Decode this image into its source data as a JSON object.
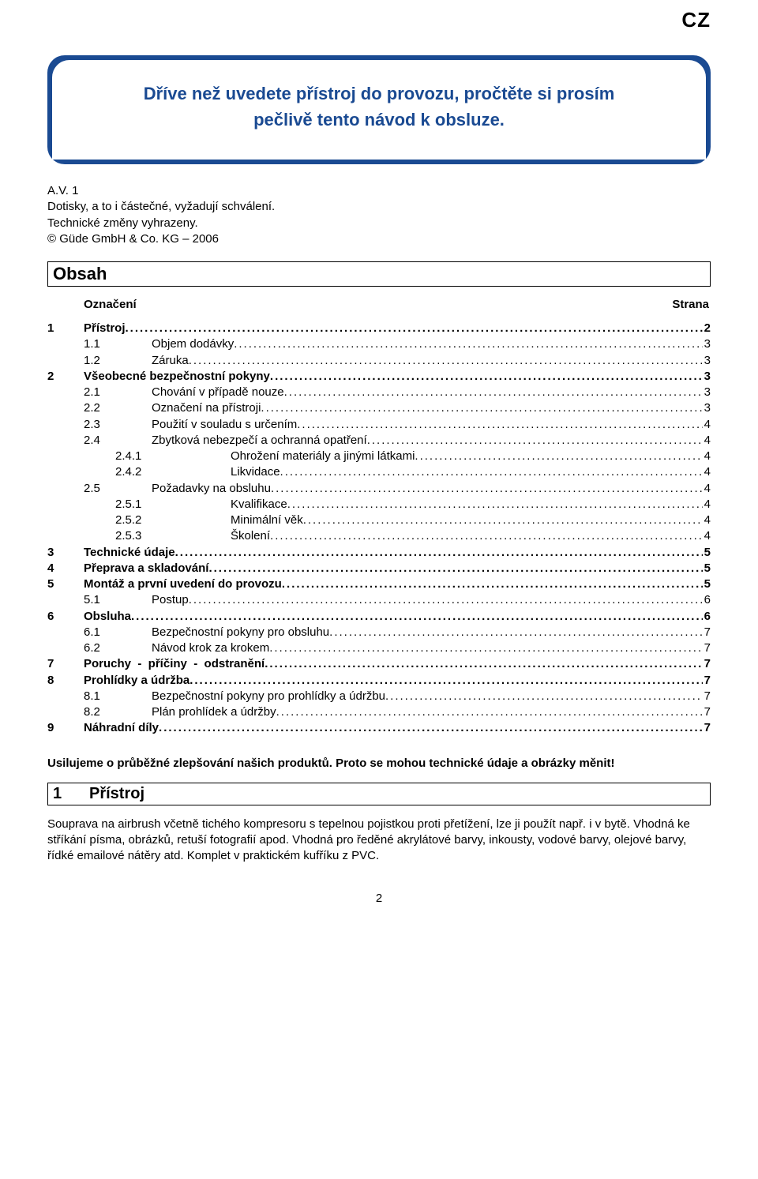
{
  "lang_badge": "CZ",
  "banner_color": "#1a4a92",
  "banner_lines": [
    "Dříve než uvedete přístroj do provozu, pročtěte si prosím",
    "pečlivě tento návod k obsluze."
  ],
  "meta_lines": [
    "A.V. 1",
    "Dotisky, a to i částečné, vyžadují schválení.",
    "Technické změny vyhrazeny.",
    "© Güde GmbH & Co. KG – 2006"
  ],
  "obsah_title": "Obsah",
  "oznaceni_label": "Označení",
  "strana_label": "Strana",
  "toc": [
    {
      "level": 0,
      "num": "1",
      "label": "Přístroj",
      "page": "2",
      "bold": true
    },
    {
      "level": 1,
      "num": "1.1",
      "label": "Objem dodávky",
      "page": "3",
      "bold": false
    },
    {
      "level": 1,
      "num": "1.2",
      "label": "Záruka",
      "page": "3",
      "bold": false
    },
    {
      "level": 0,
      "num": "2",
      "label": "Všeobecné bezpečnostní pokyny",
      "page": "3",
      "bold": true
    },
    {
      "level": 1,
      "num": "2.1",
      "label": "Chování v případě nouze",
      "page": "3",
      "bold": false
    },
    {
      "level": 1,
      "num": "2.2",
      "label": "Označení na přístroji",
      "page": "3",
      "bold": false
    },
    {
      "level": 1,
      "num": "2.3",
      "label": "Použití v souladu s určením",
      "page": "4",
      "bold": false
    },
    {
      "level": 1,
      "num": "2.4",
      "label": "Zbytková nebezpečí a ochranná opatření",
      "page": "4",
      "bold": false
    },
    {
      "level": 2,
      "num": "2.4.1",
      "label": "Ohrožení materiály a jinými látkami",
      "page": "4",
      "bold": false
    },
    {
      "level": 2,
      "num": "2.4.2",
      "label": "Likvidace",
      "page": "4",
      "bold": false
    },
    {
      "level": 1,
      "num": "2.5",
      "label": "Požadavky na obsluhu",
      "page": "4",
      "bold": false
    },
    {
      "level": 2,
      "num": "2.5.1",
      "label": "Kvalifikace",
      "page": "4",
      "bold": false
    },
    {
      "level": 2,
      "num": "2.5.2",
      "label": "Minimální věk",
      "page": "4",
      "bold": false
    },
    {
      "level": 2,
      "num": "2.5.3",
      "label": "Školení",
      "page": "4",
      "bold": false
    },
    {
      "level": 0,
      "num": "3",
      "label": "Technické údaje",
      "page": "5",
      "bold": true
    },
    {
      "level": 0,
      "num": "4",
      "label": "Přeprava a skladování",
      "page": "5",
      "bold": true
    },
    {
      "level": 0,
      "num": "5",
      "label": "Montáž a první uvedení do provozu",
      "page": "5",
      "bold": true
    },
    {
      "level": 1,
      "num": "5.1",
      "label": "Postup",
      "page": "6",
      "bold": false
    },
    {
      "level": 0,
      "num": "6",
      "label": "Obsluha",
      "page": "6",
      "bold": true
    },
    {
      "level": 1,
      "num": "6.1",
      "label": "Bezpečnostní pokyny pro obsluhu",
      "page": "7",
      "bold": false
    },
    {
      "level": 1,
      "num": "6.2",
      "label": "Návod krok za krokem",
      "page": "7",
      "bold": false
    },
    {
      "level": 0,
      "num": "7",
      "label": "Poruchy  -  příčiny  -  odstranění",
      "page": "7",
      "bold": true
    },
    {
      "level": 0,
      "num": "8",
      "label": "Prohlídky a údržba",
      "page": "7",
      "bold": true
    },
    {
      "level": 1,
      "num": "8.1",
      "label": "Bezpečnostní pokyny pro prohlídky a údržbu",
      "page": "7",
      "bold": false
    },
    {
      "level": 1,
      "num": "8.2",
      "label": "Plán prohlídek a údržby",
      "page": "7",
      "bold": false
    },
    {
      "level": 0,
      "num": "9",
      "label": "Náhradní díly",
      "page": "7",
      "bold": true
    }
  ],
  "indent_l0_num": "0px",
  "indent_l0_gap": "46px",
  "indent_l1_num": "46px",
  "indent_l1_gap": "40px",
  "indent_l2_num": "86px",
  "indent_l2_gap": "60px",
  "after_toc_paragraph": "Usilujeme o průběžné zlepšování našich produktů. Proto se mohou technické údaje a obrázky měnit!",
  "section": {
    "num": "1",
    "title": "Přístroj",
    "body": "Souprava na airbrush včetně tichého kompresoru s tepelnou pojistkou proti přetížení, lze ji použít např. i v bytě. Vhodná ke stříkání písma, obrázků, retuší fotografií apod. Vhodná pro ředěné akrylátové barvy, inkousty, vodové barvy, olejové barvy, řídké emailové nátěry atd. Komplet v praktickém kufříku z PVC."
  },
  "page_number": "2"
}
